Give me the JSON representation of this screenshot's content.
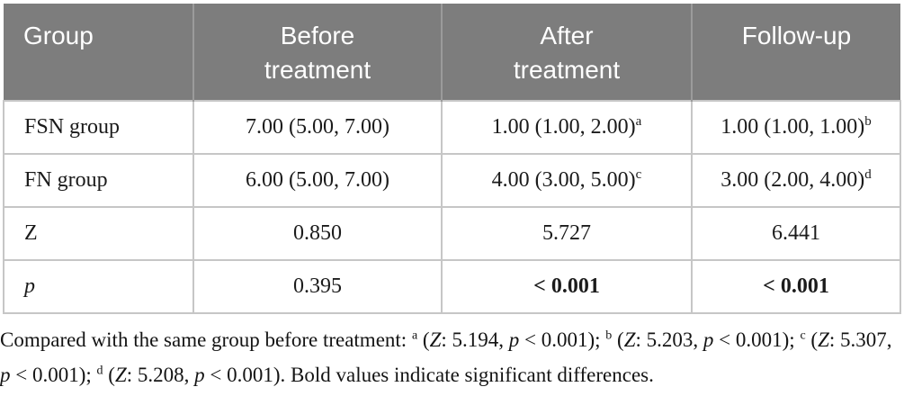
{
  "table": {
    "columns": [
      {
        "label": "Group"
      },
      {
        "label": "Before treatment"
      },
      {
        "label": "After treatment"
      },
      {
        "label": "Follow-up"
      }
    ],
    "rows": [
      {
        "label": "FSN group",
        "cells": [
          {
            "text": "7.00 (5.00, 7.00)"
          },
          {
            "text": "1.00 (1.00, 2.00)",
            "sup": "a"
          },
          {
            "text": "1.00 (1.00, 1.00)",
            "sup": "b"
          }
        ]
      },
      {
        "label": "FN group",
        "cells": [
          {
            "text": "6.00 (5.00, 7.00)"
          },
          {
            "text": "4.00 (3.00, 5.00)",
            "sup": "c"
          },
          {
            "text": "3.00 (2.00, 4.00)",
            "sup": "d"
          }
        ]
      },
      {
        "label": "Z",
        "cells": [
          {
            "text": "0.850"
          },
          {
            "text": "5.727"
          },
          {
            "text": "6.441"
          }
        ]
      },
      {
        "label": "p",
        "cells": [
          {
            "text": "0.395"
          },
          {
            "text": "< 0.001"
          },
          {
            "text": "< 0.001"
          }
        ]
      }
    ]
  },
  "footnote": {
    "segments": [
      {
        "style": "normal",
        "text": "Compared with the same group before treatment: "
      },
      {
        "style": "sup",
        "text": "a"
      },
      {
        "style": "normal",
        "text": " ("
      },
      {
        "style": "italic",
        "text": "Z"
      },
      {
        "style": "normal",
        "text": ": 5.194, "
      },
      {
        "style": "italic",
        "text": "p"
      },
      {
        "style": "normal",
        "text": " < 0.001); "
      },
      {
        "style": "sup",
        "text": "b"
      },
      {
        "style": "normal",
        "text": " ("
      },
      {
        "style": "italic",
        "text": "Z"
      },
      {
        "style": "normal",
        "text": ": 5.203, "
      },
      {
        "style": "italic",
        "text": "p"
      },
      {
        "style": "normal",
        "text": " < 0.001); "
      },
      {
        "style": "sup",
        "text": "c"
      },
      {
        "style": "normal",
        "text": " ("
      },
      {
        "style": "italic",
        "text": "Z"
      },
      {
        "style": "normal",
        "text": ": 5.307, "
      },
      {
        "style": "italic",
        "text": "p"
      },
      {
        "style": "normal",
        "text": " < 0.001); "
      },
      {
        "style": "sup",
        "text": "d"
      },
      {
        "style": "normal",
        "text": " ("
      },
      {
        "style": "italic",
        "text": "Z"
      },
      {
        "style": "normal",
        "text": ": 5.208, "
      },
      {
        "style": "italic",
        "text": "p"
      },
      {
        "style": "normal",
        "text": " < 0.001). Bold values indicate significant differences."
      }
    ]
  },
  "colors": {
    "header_bg": "#7d7d7d",
    "header_text": "#ffffff",
    "header_divider": "#9b9b9b",
    "body_border": "#c6c6c6",
    "body_text": "#1b1b1b"
  }
}
